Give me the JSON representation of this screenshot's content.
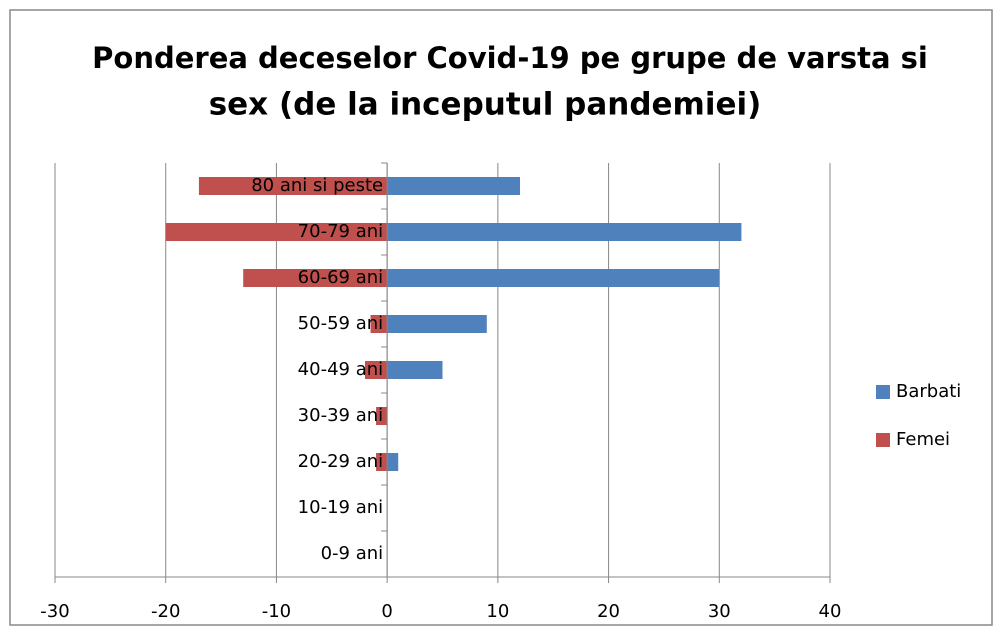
{
  "chart_data": {
    "type": "bar",
    "orientation": "horizontal",
    "title": [
      "Ponderea deceselor Covid-19 pe grupe de varsta si",
      "sex (de la inceputul pandemiei)"
    ],
    "categories": [
      "0-9 ani",
      "10-19 ani",
      "20-29 ani",
      "30-39 ani",
      "40-49 ani",
      "50-59 ani",
      "60-69 ani",
      "70-79 ani",
      "80 ani si peste"
    ],
    "series": [
      {
        "name": "Barbati",
        "color": "#4f81bd",
        "values": [
          0,
          0,
          1,
          0,
          5,
          9,
          30,
          32,
          12
        ]
      },
      {
        "name": "Femei",
        "color": "#c0504d",
        "values": [
          0,
          0,
          -1,
          -1,
          -2,
          -1.5,
          -13,
          -20,
          -17
        ]
      }
    ],
    "xlim": [
      -30,
      40
    ],
    "xticks": [
      -30,
      -20,
      -10,
      0,
      10,
      20,
      30,
      40
    ],
    "grid": true,
    "legend": "right"
  }
}
